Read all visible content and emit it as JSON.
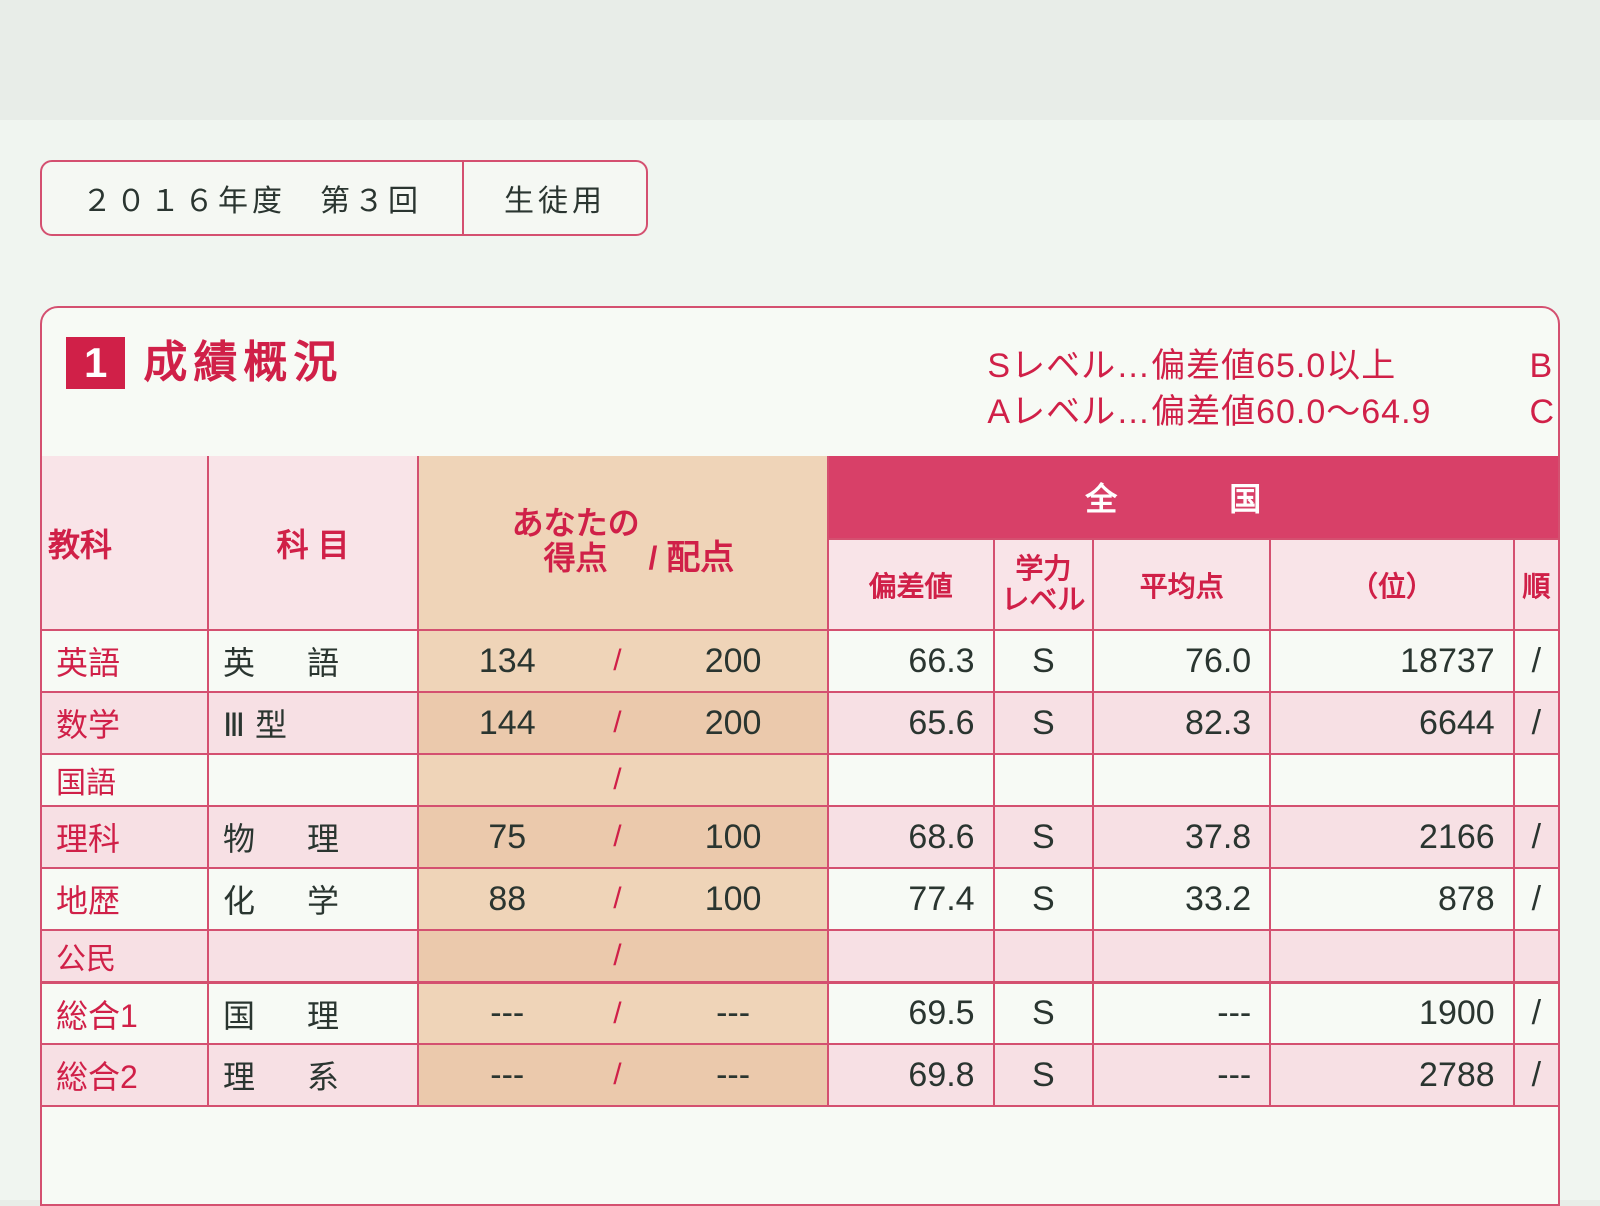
{
  "header": {
    "year_session": "２０１６年度　第３回",
    "audience": "生徒用"
  },
  "section": {
    "number": "1",
    "title": "成績概況"
  },
  "legend": {
    "line1": "Sレベル…偏差値65.0以上",
    "line2": "Aレベル…偏差値60.0〜64.9",
    "right1": "B",
    "right2": "C"
  },
  "columns": {
    "subject": "教科",
    "item": "科 目",
    "your_score": "あなたの\n得点",
    "slash": "/",
    "max": "配点",
    "national": "全　国",
    "deviation": "偏差値",
    "level": "学力\nレベル",
    "average": "平均点",
    "rank_unit": "（位）",
    "rank_header_right": "順"
  },
  "rows": [
    {
      "subject": "英語",
      "item": "英　語",
      "score": "134",
      "max": "200",
      "dev": "66.3",
      "lvl": "S",
      "avg": "76.0",
      "rank": "18737",
      "sep": "/"
    },
    {
      "subject": "数学",
      "item": "Ⅲ型",
      "score": "144",
      "max": "200",
      "dev": "65.6",
      "lvl": "S",
      "avg": "82.3",
      "rank": "6644",
      "sep": "/"
    },
    {
      "subject": "国語",
      "item": "",
      "score": "",
      "max": "",
      "dev": "",
      "lvl": "",
      "avg": "",
      "rank": "",
      "sep": ""
    },
    {
      "subject": "理科",
      "item": "物　理",
      "score": "75",
      "max": "100",
      "dev": "68.6",
      "lvl": "S",
      "avg": "37.8",
      "rank": "2166",
      "sep": "/"
    },
    {
      "subject": "地歴",
      "item": "化　学",
      "score": "88",
      "max": "100",
      "dev": "77.4",
      "lvl": "S",
      "avg": "33.2",
      "rank": "878",
      "sep": "/"
    },
    {
      "subject": "公民",
      "item": "",
      "score": "",
      "max": "",
      "dev": "",
      "lvl": "",
      "avg": "",
      "rank": "",
      "sep": ""
    },
    {
      "subject": "総合1",
      "item": "国　理",
      "score": "---",
      "max": "---",
      "dev": "69.5",
      "lvl": "S",
      "avg": "---",
      "rank": "1900",
      "sep": "/"
    },
    {
      "subject": "総合2",
      "item": "理　系",
      "score": "---",
      "max": "---",
      "dev": "69.8",
      "lvl": "S",
      "avg": "---",
      "rank": "2788",
      "sep": "/"
    }
  ],
  "colors": {
    "accent": "#d02048",
    "accent_border": "#d45070",
    "header_pink": "#f9e4e8",
    "row_pink": "#f7e0e4",
    "score_tan": "#efd4b8",
    "paper": "#f0f5f0"
  }
}
